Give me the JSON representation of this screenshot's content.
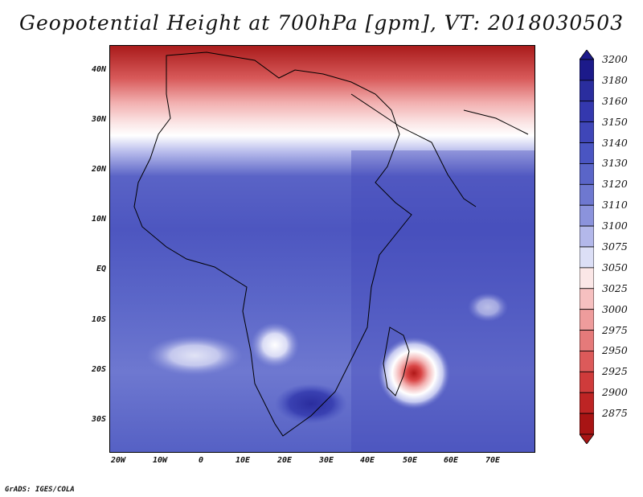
{
  "title": "Geopotential Height at 700hPa [gpm], VT: 2018030503",
  "credit": "GrADS: IGES/COLA",
  "y_axis_labels": [
    "40N",
    "30N",
    "20N",
    "10N",
    "EQ",
    "10S",
    "20S",
    "30S"
  ],
  "x_axis_labels": [
    "20W",
    "10W",
    "0",
    "10E",
    "20E",
    "30E",
    "40E",
    "50E",
    "60E",
    "70E"
  ],
  "colorbar": {
    "labels": [
      "3200",
      "3180",
      "3160",
      "3150",
      "3140",
      "3130",
      "3120",
      "3110",
      "3100",
      "3075",
      "3050",
      "3025",
      "3000",
      "2975",
      "2950",
      "2925",
      "2900",
      "2875"
    ],
    "colors": [
      "#1c1a8a",
      "#2a2d9e",
      "#3438ae",
      "#3f46b8",
      "#4a55c2",
      "#5a65c8",
      "#6e78d0",
      "#8b93dc",
      "#b3b8ea",
      "#dcdff6",
      "#fbe7e7",
      "#f6c0c0",
      "#ee9c9c",
      "#e57a7a",
      "#dc5a5a",
      "#cf3b3b",
      "#bd2424",
      "#a81414"
    ]
  }
}
